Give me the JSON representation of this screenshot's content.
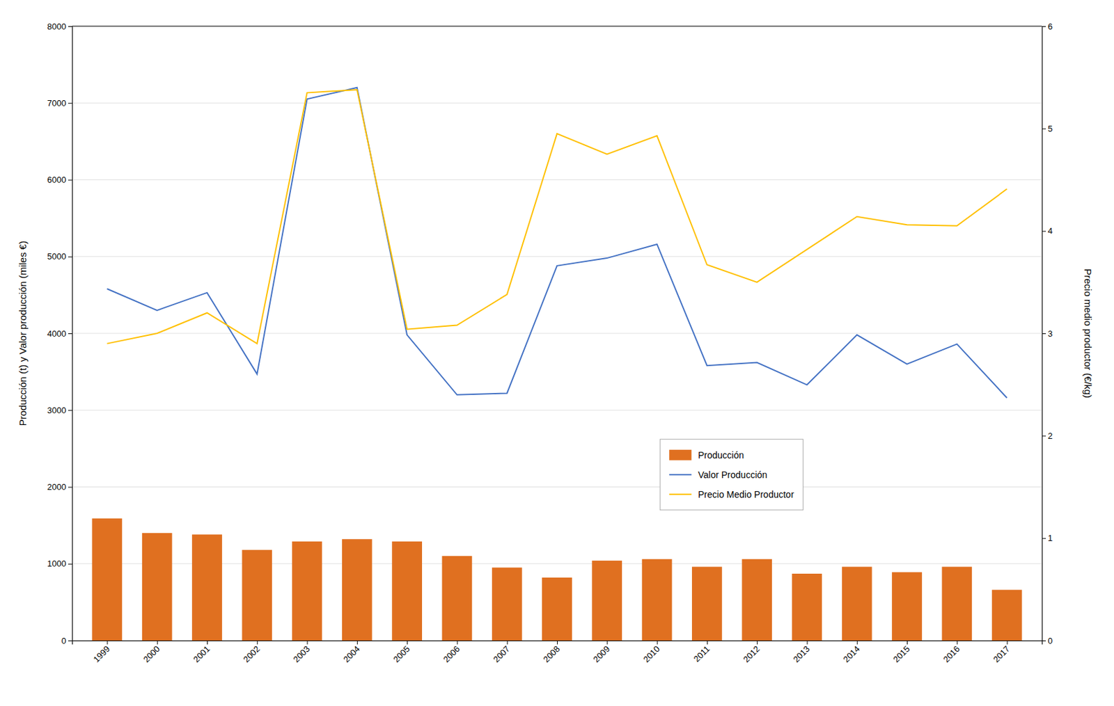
{
  "chart_data": {
    "type": "bar",
    "x": [
      1999,
      2000,
      2001,
      2002,
      2003,
      2004,
      2005,
      2006,
      2007,
      2008,
      2009,
      2010,
      2011,
      2012,
      2013,
      2014,
      2015,
      2016,
      2017
    ],
    "xlim": [
      1998.3,
      2017.7
    ],
    "xticks": [
      1999,
      2000,
      2001,
      2002,
      2003,
      2004,
      2005,
      2006,
      2007,
      2008,
      2009,
      2010,
      2011,
      2012,
      2013,
      2014,
      2015,
      2016,
      2017
    ],
    "ylabel": "Producción (t) y Valor producción (miles €)",
    "y2label": "Precio medio productor (€/kg)",
    "ylim": [
      0,
      8000
    ],
    "yticks": [
      0,
      1000,
      2000,
      3000,
      4000,
      5000,
      6000,
      7000,
      8000
    ],
    "y2lim": [
      0,
      6
    ],
    "y2ticks": [
      0,
      1,
      2,
      3,
      4,
      5,
      6
    ],
    "grid": true,
    "legend": "center",
    "series": [
      {
        "name": "Producción",
        "type": "bar",
        "color": "#e07020",
        "values": [
          1590,
          1400,
          1380,
          1180,
          1290,
          1320,
          1290,
          1100,
          950,
          820,
          1040,
          1060,
          960,
          1060,
          870,
          960,
          890,
          960,
          660
        ]
      },
      {
        "name": "Valor Producción",
        "type": "line",
        "color": "#4472c4",
        "values": [
          4580,
          4300,
          4530,
          3470,
          7050,
          7200,
          3980,
          3200,
          3220,
          4880,
          4980,
          5160,
          3580,
          3620,
          3330,
          3980,
          3600,
          3860,
          3160
        ]
      },
      {
        "name": "Precio Medio Productor",
        "type": "line",
        "color": "#ffc000",
        "axis": "y2",
        "values": [
          2.9,
          3.0,
          3.2,
          2.9,
          5.35,
          5.38,
          3.04,
          3.08,
          3.38,
          4.95,
          4.75,
          4.93,
          3.67,
          3.5,
          3.82,
          4.14,
          4.06,
          4.05,
          4.41
        ]
      }
    ]
  }
}
